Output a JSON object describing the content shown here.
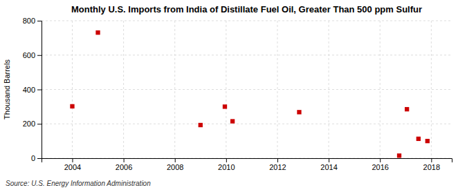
{
  "chart_data": {
    "type": "scatter",
    "title": "Monthly U.S. Imports from India of Distillate Fuel Oil, Greater Than 500 ppm Sulfur",
    "y_label": "Thousand Barrels",
    "annotations": [
      "Source: U.S. Energy Information Administration"
    ],
    "x": [
      2004.0,
      2005.0,
      2009.0,
      2009.95,
      2010.25,
      2012.85,
      2016.75,
      2017.05,
      2017.5,
      2017.85
    ],
    "values": [
      302,
      731,
      193,
      300,
      215,
      268,
      15,
      285,
      113,
      100
    ],
    "color": "#cc0000",
    "marker": "square",
    "xlim": [
      2002.8,
      2018.8
    ],
    "ylim": [
      0,
      800
    ],
    "xticks": [
      2004,
      2006,
      2008,
      2010,
      2012,
      2014,
      2016,
      2018
    ],
    "yticks": [
      0,
      200,
      400,
      600,
      800
    ],
    "grid": true
  }
}
